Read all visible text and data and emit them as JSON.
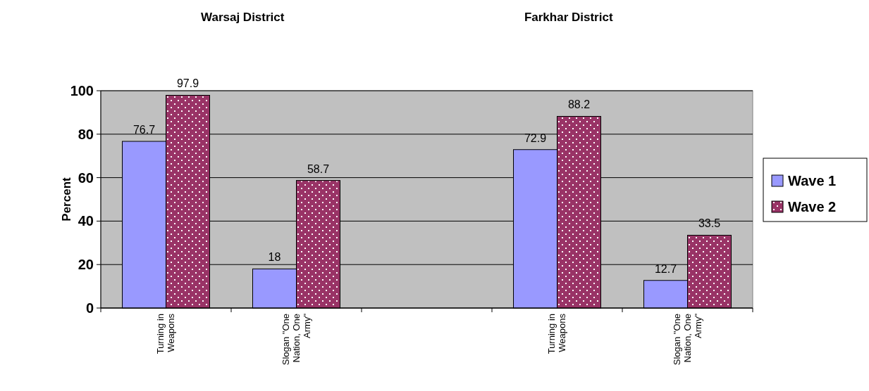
{
  "chart_data": {
    "type": "bar",
    "ylabel": "Percent",
    "annotations": [
      "Warsaj District",
      "Farkhar District"
    ],
    "categories": [
      "Turning in Weapons",
      "Slogan \"One Nation, One Army\"",
      null,
      "Turning in Weapons",
      "Slogan \"One Nation, One Army\""
    ],
    "series": [
      {
        "name": "Wave 1",
        "color": "#9999ff",
        "values": [
          76.7,
          18,
          null,
          72.9,
          12.7
        ]
      },
      {
        "name": "Wave 2",
        "color": "#993366",
        "values": [
          97.9,
          58.7,
          null,
          88.2,
          33.5
        ]
      }
    ],
    "ylim": [
      0,
      100
    ],
    "yticks": [
      0,
      20,
      40,
      60,
      80,
      100
    ],
    "grid": "y",
    "legend": "right",
    "data_labels": true
  }
}
